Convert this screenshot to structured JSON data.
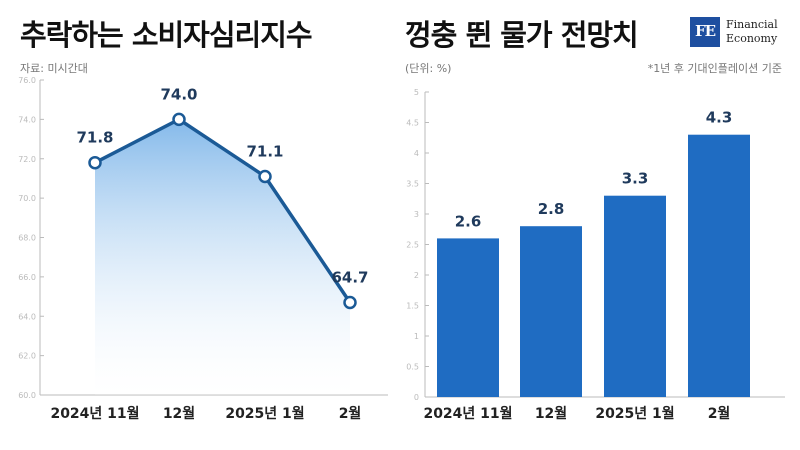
{
  "header": {
    "left_title": "추락하는 소비자심리지수",
    "right_title": "껑충 뛴 물가 전망치",
    "source": "자료: 미시간대",
    "unit": "(단위: %)",
    "footnote": "*1년 후 기대인플레이션 기준"
  },
  "logo": {
    "mark": "FE",
    "line1": "Financial",
    "line2": "Economy"
  },
  "colors": {
    "line": "#1b5a96",
    "area_top": "#84b9ea",
    "bar": "#1f6cc2",
    "axis": "#bbbbbb"
  },
  "chart_data": [
    {
      "type": "area",
      "title": "추락하는 소비자심리지수",
      "categories": [
        "2024년 11월",
        "12월",
        "2025년 1월",
        "2월"
      ],
      "values": [
        71.8,
        74.0,
        71.1,
        64.7
      ],
      "ylim": [
        60,
        76
      ],
      "yticks": [
        "60.0",
        "62.0",
        "64.0",
        "66.0",
        "68.0",
        "70.0",
        "72.0",
        "74.0",
        "76.0"
      ],
      "data_labels": [
        "71.8",
        "74.0",
        "71.1",
        "64.7"
      ],
      "grid": false
    },
    {
      "type": "bar",
      "title": "껑충 뛴 물가 전망치",
      "categories": [
        "2024년 11월",
        "12월",
        "2025년 1월",
        "2월"
      ],
      "values": [
        2.6,
        2.8,
        3.3,
        4.3
      ],
      "ylim": [
        0,
        5
      ],
      "yticks": [
        "0",
        "0.5",
        "1",
        "1.5",
        "2",
        "2.5",
        "3",
        "3.5",
        "4",
        "4.5",
        "5"
      ],
      "data_labels": [
        "2.6",
        "2.8",
        "3.3",
        "4.3"
      ],
      "grid": false
    }
  ]
}
